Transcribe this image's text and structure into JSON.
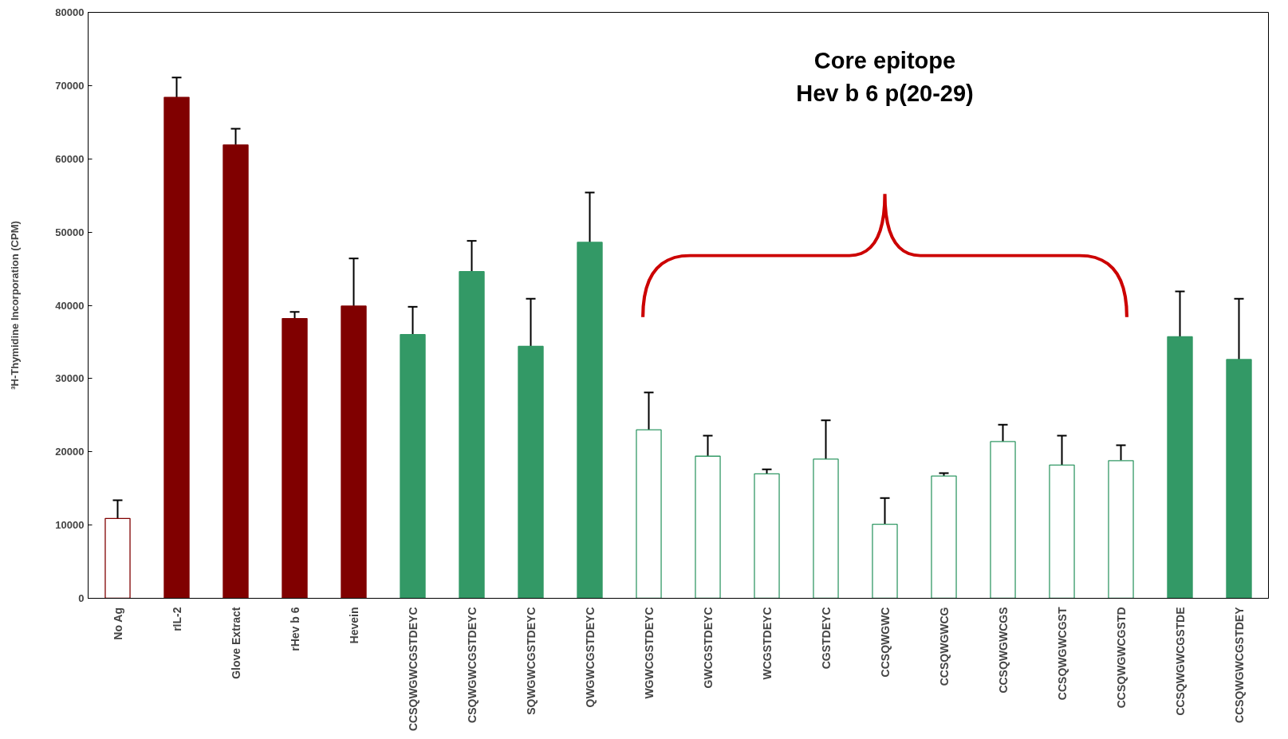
{
  "chart_data": {
    "type": "bar",
    "ylabel": "³H-Thymidine Incorporation (CPM)",
    "categories": [
      "No Ag",
      "rIL-2",
      "Glove Extract",
      "rHev b 6",
      "Hevein",
      "CCSQWGWCGSTDEYC",
      "CSQWGWCGSTDEYC",
      "SQWGWCGSTDEYC",
      "QWGWCGSTDEYC",
      "WGWCGSTDEYC",
      "GWCGSTDEYC",
      "WCGSTDEYC",
      "CGSTDEYC",
      "CCSQWGWC",
      "CCSQWGWCG",
      "CCSQWGWCGS",
      "CCSQWGWCGST",
      "CCSQWGWCGSTD",
      "CCSQWGWCGSTDE",
      "CCSQWGWCGSTDEY"
    ],
    "stacked": true,
    "series": [
      {
        "colors": [
          null,
          "#800000",
          "#800000",
          "#800000",
          "#800000",
          "#339966",
          "#339966",
          "#339966",
          "#339966",
          null,
          null,
          null,
          null,
          null,
          null,
          null,
          null,
          null,
          "#339966",
          "#339966"
        ],
        "values": [
          null,
          68400,
          61900,
          38200,
          39900,
          36000,
          44600,
          34400,
          48600,
          null,
          null,
          null,
          null,
          null,
          null,
          null,
          null,
          null,
          35700,
          32600
        ],
        "errors": [
          null,
          [
            68400,
            71100
          ],
          [
            61900,
            64100
          ],
          [
            38200,
            39100
          ],
          [
            39900,
            46400
          ],
          [
            36000,
            39800
          ],
          [
            44600,
            48800
          ],
          [
            34400,
            40900
          ],
          [
            48600,
            55400
          ],
          null,
          null,
          null,
          null,
          null,
          null,
          null,
          null,
          null,
          [
            35700,
            41900
          ],
          [
            32600,
            40900
          ]
        ]
      },
      {
        "colors": [
          "#800000",
          null,
          null,
          null,
          null,
          null,
          null,
          null,
          null,
          "#339966",
          "#339966",
          "#339966",
          "#339966",
          "#339966",
          "#339966",
          "#339966",
          "#339966",
          "#339966",
          null,
          null
        ],
        "values": [
          10900,
          null,
          null,
          null,
          null,
          null,
          null,
          null,
          null,
          23000,
          19400,
          17000,
          19000,
          10100,
          16700,
          21400,
          18200,
          18800,
          null,
          null
        ],
        "errors": [
          [
            10900,
            13400
          ],
          null,
          null,
          null,
          null,
          null,
          null,
          null,
          null,
          [
            23000,
            28100
          ],
          [
            19400,
            22200
          ],
          [
            17000,
            17600
          ],
          [
            19000,
            24300
          ],
          [
            10100,
            13700
          ],
          [
            16700,
            17100
          ],
          [
            21400,
            23700
          ],
          [
            18200,
            22200
          ],
          [
            18800,
            20900
          ],
          null,
          null
        ]
      }
    ],
    "ylim": [
      0,
      80000
    ],
    "yticks": [
      0,
      10000,
      20000,
      30000,
      40000,
      50000,
      60000,
      70000,
      80000
    ],
    "grid": false,
    "annotations": [
      "Core epitope\nHev b 6 p(20-29)"
    ]
  }
}
